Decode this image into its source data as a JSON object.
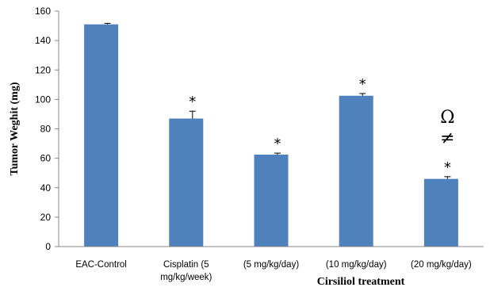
{
  "chart_data": {
    "type": "bar",
    "categories": [
      [
        "EAC-Control"
      ],
      [
        "Cisplatin (5",
        "mg/kg/week)"
      ],
      [
        "(5 mg/kg/day)"
      ],
      [
        "(10 mg/kg/day)"
      ],
      [
        "(20 mg/kg/day)"
      ]
    ],
    "values": [
      151,
      87,
      62.5,
      102.5,
      46
    ],
    "errors": [
      0.7,
      5,
      1,
      1.5,
      1.5
    ],
    "annotations": [
      [],
      [
        "*"
      ],
      [
        "*"
      ],
      [
        "*"
      ],
      [
        "Ω",
        "≠",
        "*"
      ]
    ],
    "ylabel": "Tumor Weghit (mg)",
    "xgroup_label": "Cirsiliol treatment",
    "ylim": [
      0,
      160
    ],
    "yticks": [
      0,
      20,
      40,
      60,
      80,
      100,
      120,
      140,
      160
    ],
    "bar_color": "#4f81bd",
    "grid": false
  }
}
